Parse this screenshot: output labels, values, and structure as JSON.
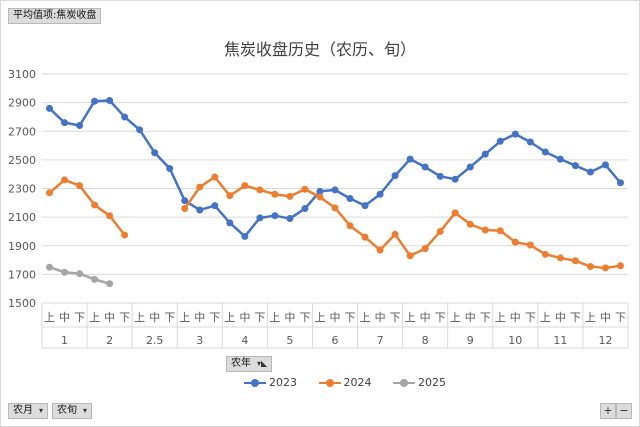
{
  "pivot": {
    "value_field": "平均值项:焦炭收盘",
    "legend_field": "农年",
    "row_field_1": "农月",
    "row_field_2": "农旬",
    "zoom_in": "+",
    "zoom_out": "−"
  },
  "colors": {
    "2023": "#4472c4",
    "2024": "#ed7d31",
    "2025": "#a5a5a5",
    "grid": "#d9d9d9",
    "axis_text": "#595959"
  },
  "chart_data": {
    "type": "line",
    "title": "焦炭收盘历史（农历、旬）",
    "ylim": [
      1500,
      3100
    ],
    "yticks": [
      1500,
      1700,
      1900,
      2100,
      2300,
      2500,
      2700,
      2900,
      3100
    ],
    "grid": true,
    "legend_position": "bottom",
    "x": [
      "上",
      "中",
      "下",
      "上",
      "中",
      "下",
      "上",
      "中",
      "下",
      "上",
      "中",
      "下",
      "上",
      "中",
      "下",
      "上",
      "中",
      "下",
      "上",
      "中",
      "下",
      "上",
      "中",
      "下",
      "上",
      "中",
      "下",
      "上",
      "中",
      "下",
      "上",
      "中",
      "下",
      "上",
      "中",
      "下",
      "上",
      "中",
      "下"
    ],
    "groups": [
      {
        "label": "1",
        "count": 3
      },
      {
        "label": "2",
        "count": 3
      },
      {
        "label": "2.5",
        "count": 3
      },
      {
        "label": "3",
        "count": 3
      },
      {
        "label": "4",
        "count": 3
      },
      {
        "label": "5",
        "count": 3
      },
      {
        "label": "6",
        "count": 3
      },
      {
        "label": "7",
        "count": 3
      },
      {
        "label": "8",
        "count": 3
      },
      {
        "label": "9",
        "count": 3
      },
      {
        "label": "10",
        "count": 3
      },
      {
        "label": "11",
        "count": 3
      },
      {
        "label": "12",
        "count": 3
      }
    ],
    "series": [
      {
        "name": "2023",
        "values": [
          2860,
          2760,
          2740,
          2910,
          2915,
          2800,
          2710,
          2550,
          2440,
          2215,
          2150,
          2180,
          2060,
          1965,
          2095,
          2110,
          2090,
          2160,
          2280,
          2290,
          2230,
          2180,
          2260,
          2390,
          2505,
          2450,
          2385,
          2365,
          2450,
          2540,
          2630,
          2680,
          2625,
          2555,
          2505,
          2460,
          2415,
          2465,
          2340
        ]
      },
      {
        "name": "2024",
        "values": [
          2270,
          2360,
          2320,
          2185,
          2110,
          1975,
          null,
          null,
          null,
          2160,
          2310,
          2380,
          2250,
          2320,
          2290,
          2260,
          2245,
          2295,
          2240,
          2165,
          2040,
          1960,
          1870,
          1980,
          1830,
          1880,
          2000,
          2130,
          2050,
          2010,
          2005,
          1925,
          1905,
          1840,
          1815,
          1795,
          1755,
          1745,
          1760
        ]
      },
      {
        "name": "2025",
        "values": [
          1750,
          1715,
          1705,
          1665,
          1635,
          null,
          null,
          null,
          null,
          null,
          null,
          null,
          null,
          null,
          null,
          null,
          null,
          null,
          null,
          null,
          null,
          null,
          null,
          null,
          null,
          null,
          null,
          null,
          null,
          null,
          null,
          null,
          null,
          null,
          null,
          null,
          null,
          null,
          null
        ]
      }
    ]
  }
}
